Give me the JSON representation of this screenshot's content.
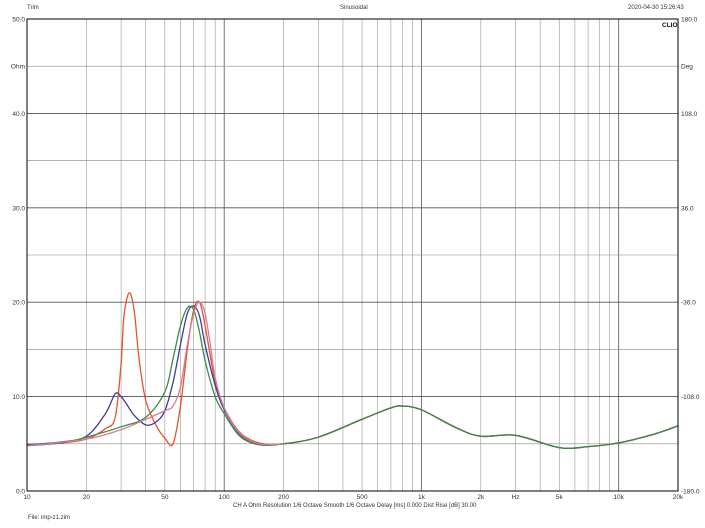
{
  "header": {
    "left": "Trim",
    "center": "Sinusoidal",
    "right": "2020-04-30 15:26:43",
    "brand": "CLIO"
  },
  "footer": {
    "settings": "CH A   Ohm   Resolution  1/6 Octave    Smooth  1/6 Octave    Delay [ms] 0.000    Dist Rise [dB] 30.00",
    "file": "File: imp-z1.zim"
  },
  "chart_data": {
    "type": "line",
    "x_scale": "log",
    "xlim": [
      10,
      20000
    ],
    "ylim": [
      0,
      50
    ],
    "y2lim": [
      -180,
      180
    ],
    "ylabel": "Ohm",
    "y2label": "Deg",
    "grid": true,
    "x_ticks": [
      {
        "v": 10,
        "label": "10"
      },
      {
        "v": 20,
        "label": "20"
      },
      {
        "v": 50,
        "label": "50"
      },
      {
        "v": 100,
        "label": "100"
      },
      {
        "v": 200,
        "label": "200"
      },
      {
        "v": 500,
        "label": "500"
      },
      {
        "v": 1000,
        "label": "1k"
      },
      {
        "v": 2000,
        "label": "2k"
      },
      {
        "v": 3000,
        "label": "Hz"
      },
      {
        "v": 5000,
        "label": "5k"
      },
      {
        "v": 10000,
        "label": "10k"
      },
      {
        "v": 20000,
        "label": "20k"
      }
    ],
    "y_ticks": [
      {
        "v": 0,
        "label": "0.0"
      },
      {
        "v": 10,
        "label": "10.0"
      },
      {
        "v": 20,
        "label": "20.0"
      },
      {
        "v": 30,
        "label": "30.0"
      },
      {
        "v": 40,
        "label": "40.0"
      },
      {
        "v": 45,
        "label": "Ohm"
      },
      {
        "v": 50,
        "label": "50.0"
      }
    ],
    "y2_ticks": [
      {
        "v": 180,
        "label": "180.0"
      },
      {
        "v": 144,
        "label": "Deg"
      },
      {
        "v": 108,
        "label": "108.0"
      },
      {
        "v": 36,
        "label": "36.0"
      },
      {
        "v": -36,
        "label": "-36.0"
      },
      {
        "v": -108,
        "label": "-108.0"
      },
      {
        "v": -180,
        "label": "-180.0"
      }
    ],
    "series": [
      {
        "color": "#e8532a",
        "x": [
          10,
          15,
          20,
          25,
          28,
          30,
          31,
          33,
          35,
          37,
          40,
          45,
          50,
          55,
          60,
          65,
          70,
          75,
          80,
          90,
          100,
          120,
          150,
          200,
          300,
          500,
          700,
          800,
          1000,
          1500,
          2000,
          3000,
          5000,
          7000,
          10000,
          15000,
          20000
        ],
        "y": [
          4.8,
          5.1,
          5.5,
          6.6,
          7.8,
          13.5,
          18.5,
          21.0,
          19.0,
          14.0,
          9.6,
          7.0,
          5.6,
          5.0,
          9.0,
          15.0,
          19.2,
          20.0,
          17.5,
          11.5,
          8.8,
          6.2,
          5.1,
          5.0,
          5.7,
          7.6,
          8.8,
          9.0,
          8.6,
          6.7,
          5.8,
          5.9,
          4.6,
          4.7,
          5.1,
          6.0,
          6.9
        ]
      },
      {
        "color": "#3a3f9e",
        "x": [
          10,
          15,
          20,
          25,
          28,
          30,
          32,
          35,
          40,
          45,
          50,
          55,
          60,
          65,
          70,
          75,
          80,
          90,
          100,
          120,
          150,
          200,
          300,
          500,
          700,
          800,
          1000,
          1500,
          2000,
          3000,
          5000,
          7000,
          10000,
          15000,
          20000
        ],
        "y": [
          4.9,
          5.2,
          5.8,
          8.2,
          10.3,
          10.0,
          9.2,
          8.0,
          7.0,
          7.3,
          8.5,
          11.5,
          15.5,
          18.8,
          19.6,
          18.5,
          15.5,
          11.2,
          8.6,
          6.0,
          5.0,
          5.0,
          5.7,
          7.6,
          8.8,
          9.0,
          8.6,
          6.7,
          5.8,
          5.9,
          4.6,
          4.7,
          5.1,
          6.0,
          6.9
        ]
      },
      {
        "color": "#3e8a3e",
        "x": [
          10,
          15,
          20,
          30,
          40,
          50,
          55,
          60,
          65,
          70,
          75,
          80,
          90,
          100,
          120,
          150,
          200,
          300,
          500,
          700,
          800,
          1000,
          1500,
          2000,
          3000,
          5000,
          7000,
          10000,
          15000,
          20000
        ],
        "y": [
          4.8,
          5.1,
          5.7,
          6.8,
          7.8,
          10.5,
          14.0,
          17.5,
          19.4,
          19.2,
          16.8,
          13.8,
          10.0,
          8.2,
          5.8,
          4.9,
          5.0,
          5.7,
          7.6,
          8.8,
          9.0,
          8.6,
          6.7,
          5.8,
          5.9,
          4.6,
          4.7,
          5.1,
          6.0,
          6.9
        ]
      },
      {
        "color": "#d87a9a",
        "x": [
          10,
          20,
          30,
          40,
          50,
          55,
          60,
          65,
          70,
          75,
          80,
          85,
          90,
          100,
          120,
          150,
          200
        ],
        "y": [
          4.8,
          5.5,
          6.5,
          7.6,
          8.5,
          9.0,
          11.0,
          15.5,
          18.8,
          20.0,
          18.8,
          15.5,
          12.0,
          8.8,
          6.1,
          5.0,
          5.0
        ]
      }
    ]
  }
}
